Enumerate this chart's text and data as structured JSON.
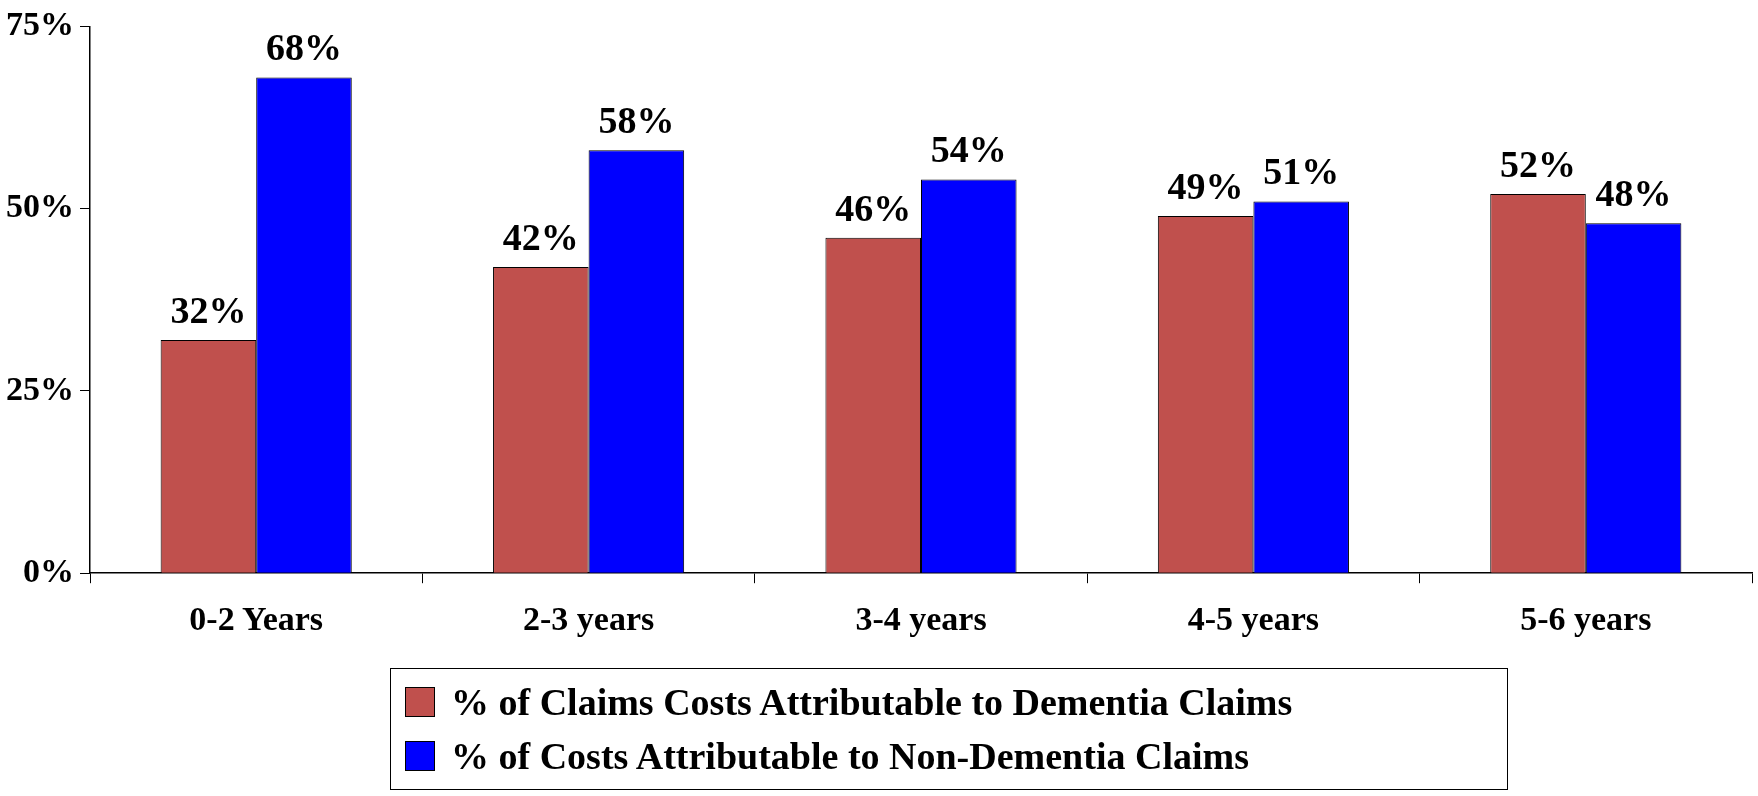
{
  "chart_data": {
    "type": "bar",
    "categories": [
      "0-2 Years",
      "2-3 years",
      "3-4 years",
      "4-5 years",
      "5-6 years"
    ],
    "series": [
      {
        "name": "% of Claims Costs Attributable to Dementia Claims",
        "color": "#c0504d",
        "values": [
          32,
          42,
          46,
          49,
          52
        ],
        "value_labels": [
          "32%",
          "42%",
          "46%",
          "49%",
          "52%"
        ]
      },
      {
        "name": "% of Costs Attributable to Non-Dementia Claims",
        "color": "#0000ff",
        "values": [
          68,
          58,
          54,
          51,
          48
        ],
        "value_labels": [
          "68%",
          "58%",
          "54%",
          "51%",
          "48%"
        ]
      }
    ],
    "ylim": [
      0,
      75
    ],
    "yticks": [
      {
        "value": 0,
        "label": "0%"
      },
      {
        "value": 25,
        "label": "25%"
      },
      {
        "value": 50,
        "label": "50%"
      },
      {
        "value": 75,
        "label": "75%"
      }
    ],
    "grid": false,
    "legend": "bottom"
  }
}
